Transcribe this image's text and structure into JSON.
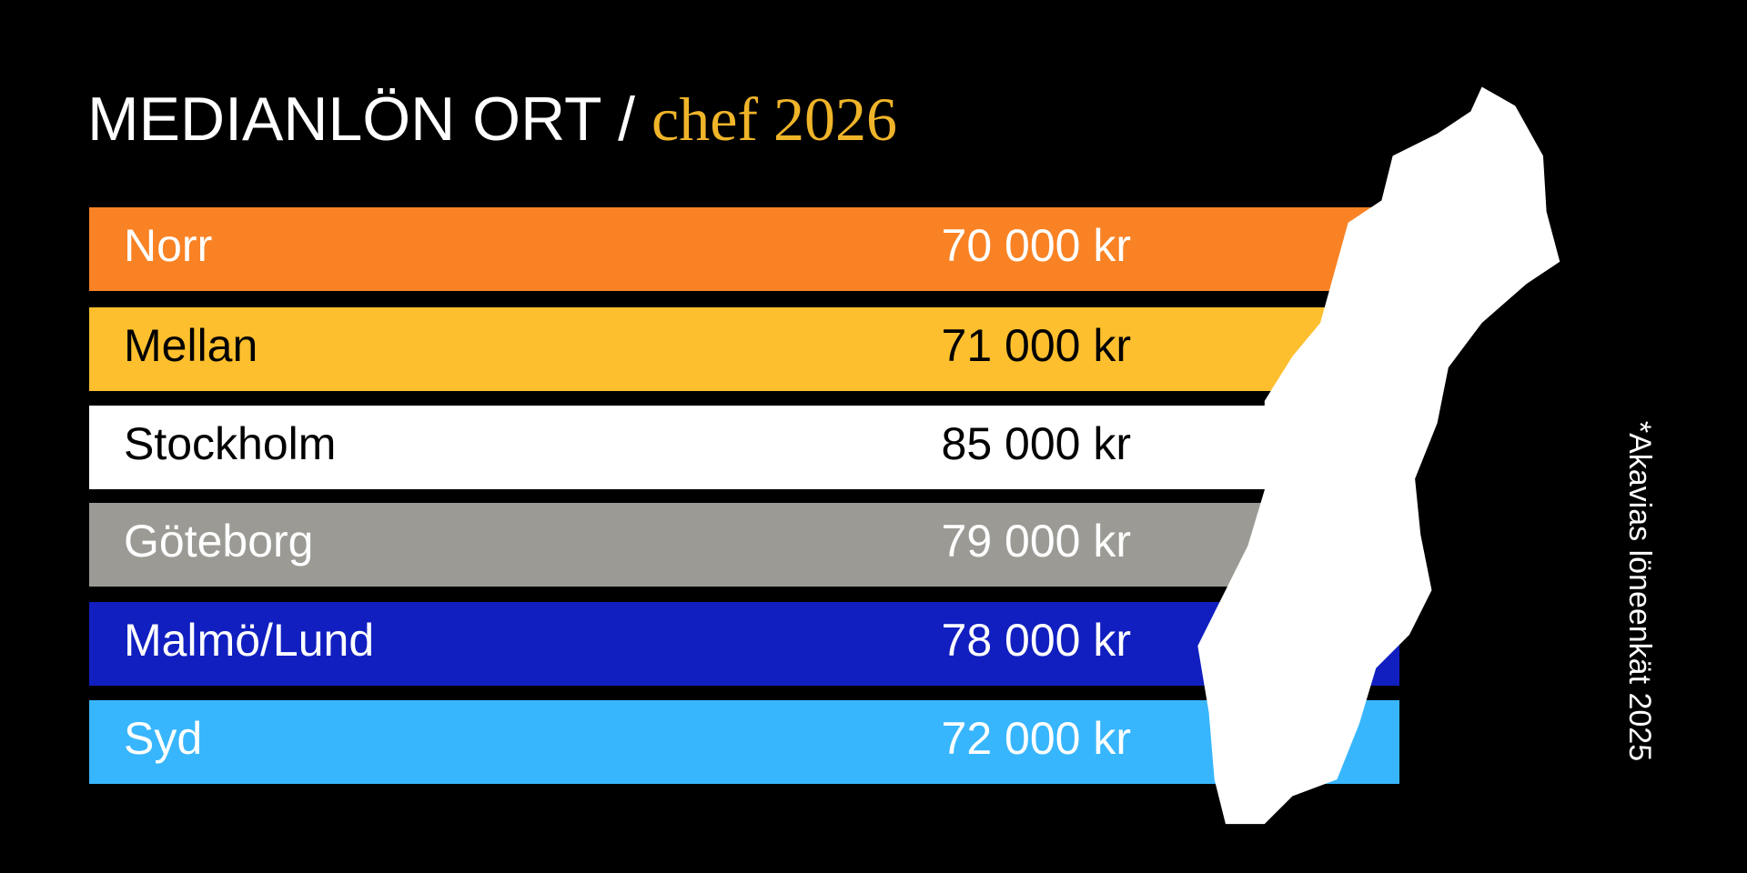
{
  "header": {
    "title": "MEDIANLÖN ORT /",
    "title_accent": "chef 2026",
    "accent_color": "#f0b429"
  },
  "rows": [
    {
      "name": "Norr",
      "value": "70 000 kr",
      "color": "#f98224",
      "text_color": "#ffffff"
    },
    {
      "name": "Mellan",
      "value": "71 000 kr",
      "color": "#fdbf2d",
      "text_color": "#000000"
    },
    {
      "name": "Stockholm",
      "value": "85 000 kr",
      "color": "#ffffff",
      "text_color": "#000000"
    },
    {
      "name": "Göteborg",
      "value": "79 000 kr",
      "color": "#9b9a94",
      "text_color": "#ffffff"
    },
    {
      "name": "Malmö/Lund",
      "value": "78 000 kr",
      "color": "#111fc0",
      "text_color": "#ffffff"
    },
    {
      "name": "Syd",
      "value": "72 000 kr",
      "color": "#38b6fd",
      "text_color": "#ffffff"
    }
  ],
  "footnote": "*Akavias löneenkät 2025"
}
